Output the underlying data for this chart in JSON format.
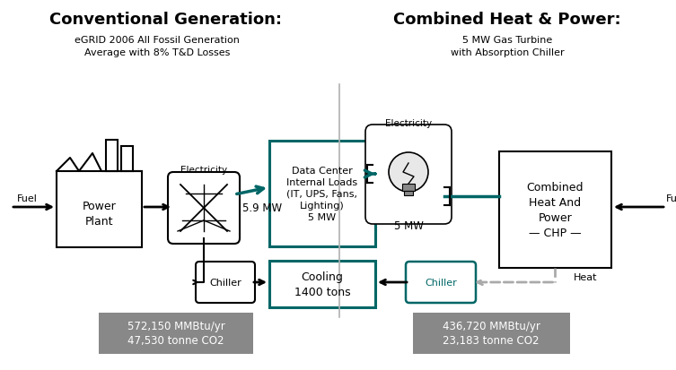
{
  "title_left": "Conventional Generation:",
  "title_right": "Combined Heat & Power:",
  "subtitle_left": "eGRID 2006 All Fossil Generation\nAverage with 8% T&D Losses",
  "subtitle_right": "5 MW Gas Turbine\nwith Absorption Chiller",
  "box_data_center": "Data Center\nInternal Loads\n(IT, UPS, Fans,\nLighting)\n5 MW",
  "box_cooling": "Cooling\n1400 tons",
  "box_chp": "Combined\nHeat And\nPower\n— CHP —",
  "box_chiller_left": "Chiller",
  "box_chiller_right": "Chiller",
  "label_fuel_left": "Fuel",
  "label_fuel_right": "Fuel",
  "label_electricity_left": "Electricity",
  "label_electricity_right": "Electricity",
  "label_heat": "Heat",
  "label_59mw": "5.9 MW",
  "label_5mw": "5 MW",
  "box1_line1": "572,150 MMBtu/yr",
  "box1_line2": "47,530 tonne CO2",
  "box2_line1": "436,720 MMBtu/yr",
  "box2_line2": "23,183 tonne CO2",
  "bg_color": "#ffffff",
  "teal_color": "#006666",
  "gray_box_color": "#888888",
  "divider_color": "#b0b0b0",
  "dashed_color": "#aaaaaa"
}
